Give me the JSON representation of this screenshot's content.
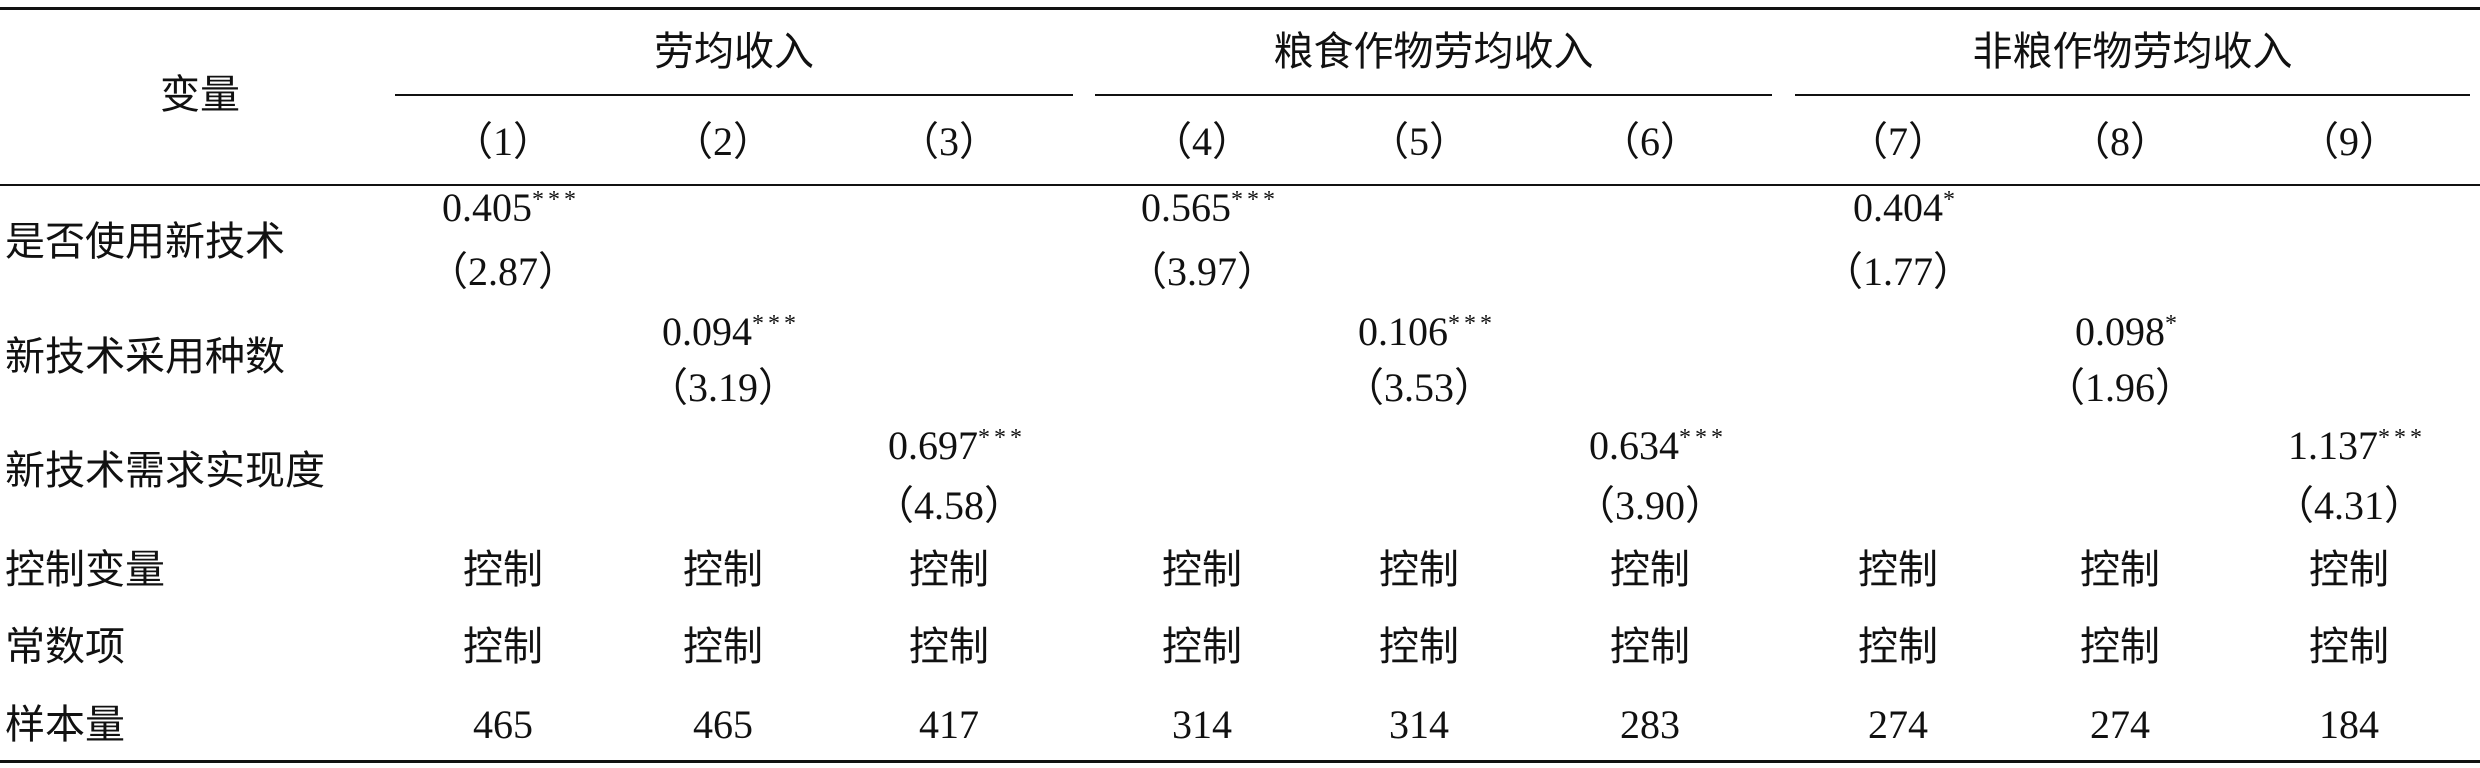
{
  "header": {
    "variable": "变量",
    "groups": [
      "劳均收入",
      "粮食作物劳均收入",
      "非粮作物劳均收入"
    ],
    "columns": [
      "（1）",
      "（2）",
      "（3）",
      "（4）",
      "（5）",
      "（6）",
      "（7）",
      "（8）",
      "（9）"
    ]
  },
  "rows": [
    {
      "label": "是否使用新技术",
      "cells": [
        {
          "coef": "0.405",
          "stars": "***",
          "t": "（2.87）"
        },
        null,
        null,
        {
          "coef": "0.565",
          "stars": "***",
          "t": "（3.97）"
        },
        null,
        null,
        {
          "coef": "0.404",
          "stars": "*",
          "t": "（1.77）"
        },
        null,
        null
      ]
    },
    {
      "label": "新技术采用种数",
      "cells": [
        null,
        {
          "coef": "0.094",
          "stars": "***",
          "t": "（3.19）"
        },
        null,
        null,
        {
          "coef": "0.106",
          "stars": "***",
          "t": "（3.53）"
        },
        null,
        null,
        {
          "coef": "0.098",
          "stars": "*",
          "t": "（1.96）"
        },
        null
      ]
    },
    {
      "label": "新技术需求实现度",
      "cells": [
        null,
        null,
        {
          "coef": "0.697",
          "stars": "***",
          "t": "（4.58）"
        },
        null,
        null,
        {
          "coef": "0.634",
          "stars": "***",
          "t": "（3.90）"
        },
        null,
        null,
        {
          "coef": "1.137",
          "stars": "***",
          "t": "（4.31）"
        }
      ]
    },
    {
      "label": "控制变量",
      "cells": [
        "控制",
        "控制",
        "控制",
        "控制",
        "控制",
        "控制",
        "控制",
        "控制",
        "控制"
      ]
    },
    {
      "label": "常数项",
      "cells": [
        "控制",
        "控制",
        "控制",
        "控制",
        "控制",
        "控制",
        "控制",
        "控制",
        "控制"
      ]
    },
    {
      "label": "样本量",
      "cells": [
        "465",
        "465",
        "417",
        "314",
        "314",
        "283",
        "274",
        "274",
        "184"
      ]
    }
  ]
}
